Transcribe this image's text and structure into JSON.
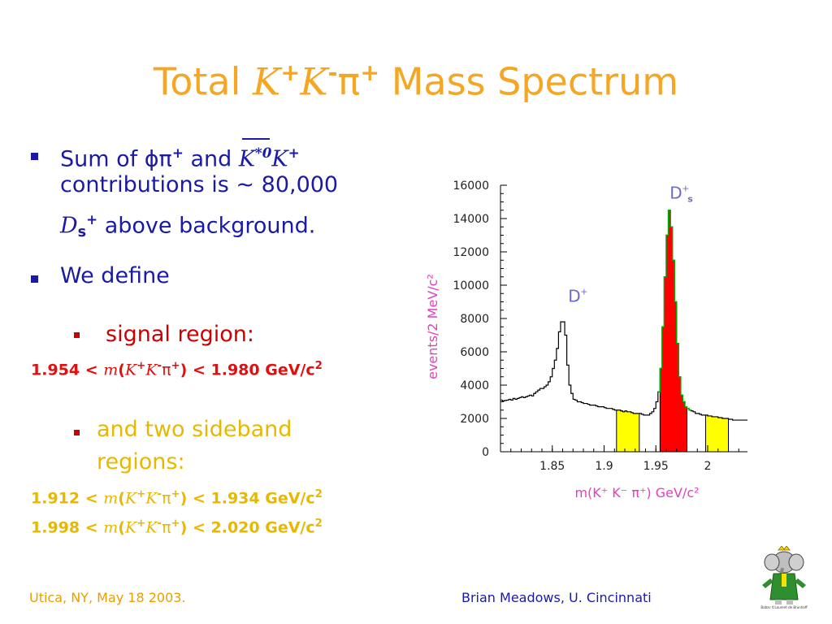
{
  "slide": {
    "title_prefix": "Total ",
    "title_k": "K",
    "title_plus": "+",
    "title_minus": "-",
    "title_pi": "π",
    "title_suffix": " Mass Spectrum",
    "bullet1": {
      "part1": "Sum of ",
      "phi_pi": "ϕπ",
      "plus": "+",
      "and": " and ",
      "kstar": "K",
      "kstar_sup": "*0",
      "k": "K",
      "line2": "contributions is ∼ 80,000",
      "ds": "D",
      "ds_sub": "s",
      "line3_rest": " above background."
    },
    "bullet2": "We define",
    "sub1": "signal region:",
    "eq1": {
      "low": "1.954 < ",
      "m": "m",
      "mid": "(",
      "k": "K",
      "pi": "π",
      "close": ") < 1.980 GeV/c",
      "sq": "2"
    },
    "sub2_line1": "and two sideband",
    "sub2_line2": "regions:",
    "eq2": {
      "low": "1.912 < ",
      "m": "m",
      "mid": "(",
      "k": "K",
      "pi": "π",
      "close": ") < 1.934 GeV/c",
      "sq": "2"
    },
    "eq3": {
      "low": "1.998 < ",
      "m": "m",
      "mid": "(",
      "k": "K",
      "pi": "π",
      "close": ") < 2.020 GeV/c",
      "sq": "2"
    },
    "plus": "+",
    "minus": "-"
  },
  "footer": {
    "left": "Utica, NY, May 18 2003.",
    "right": "Brian Meadows, U. Cincinnati",
    "logo_caption": "Babar ©Laurent de Brunhoff"
  },
  "chart_data": {
    "type": "histogram",
    "xlabel": "m(K⁺ K⁻ π⁺) GeV/c²",
    "ylabel": "events/2 MeV/c²",
    "xlim": [
      1.8,
      2.04
    ],
    "ylim": [
      0,
      16000
    ],
    "xticks": [
      "1.85",
      "1.9",
      "1.95",
      "2"
    ],
    "yticks": [
      "0",
      "2000",
      "4000",
      "6000",
      "8000",
      "10000",
      "12000",
      "14000",
      "16000"
    ],
    "annotations": [
      {
        "text": "D",
        "sup": "+",
        "x": 1.87,
        "y": 9000
      },
      {
        "text": "D",
        "sup": "+",
        "sub": "s",
        "x": 1.968,
        "y": 15200
      }
    ],
    "colors": {
      "signal": "#ff0000",
      "sideband": "#ffff00",
      "hist": "#000000",
      "signal_outline": "#00aa00",
      "labels": "#e040c0",
      "annotation": "#6a6ad0"
    },
    "bin_width": 0.002,
    "x": [
      1.8,
      1.802,
      1.804,
      1.806,
      1.808,
      1.81,
      1.812,
      1.814,
      1.816,
      1.818,
      1.82,
      1.822,
      1.824,
      1.826,
      1.828,
      1.83,
      1.832,
      1.834,
      1.836,
      1.838,
      1.84,
      1.842,
      1.844,
      1.846,
      1.848,
      1.85,
      1.852,
      1.854,
      1.856,
      1.858,
      1.86,
      1.862,
      1.864,
      1.866,
      1.868,
      1.87,
      1.872,
      1.874,
      1.876,
      1.878,
      1.88,
      1.882,
      1.884,
      1.886,
      1.888,
      1.89,
      1.892,
      1.894,
      1.896,
      1.898,
      1.9,
      1.902,
      1.904,
      1.906,
      1.908,
      1.91,
      1.912,
      1.914,
      1.916,
      1.918,
      1.92,
      1.922,
      1.924,
      1.926,
      1.928,
      1.93,
      1.932,
      1.934,
      1.936,
      1.938,
      1.94,
      1.942,
      1.944,
      1.946,
      1.948,
      1.95,
      1.952,
      1.954,
      1.956,
      1.958,
      1.96,
      1.962,
      1.964,
      1.966,
      1.968,
      1.97,
      1.972,
      1.974,
      1.976,
      1.978,
      1.98,
      1.982,
      1.984,
      1.986,
      1.988,
      1.99,
      1.992,
      1.994,
      1.996,
      1.998,
      2.0,
      2.002,
      2.004,
      2.006,
      2.008,
      2.01,
      2.012,
      2.014,
      2.016,
      2.018,
      2.02,
      2.022,
      2.024,
      2.026,
      2.028,
      2.03,
      2.032,
      2.034,
      2.036,
      2.038
    ],
    "values": [
      3100,
      3050,
      3080,
      3100,
      3150,
      3100,
      3200,
      3150,
      3200,
      3250,
      3300,
      3250,
      3300,
      3350,
      3400,
      3350,
      3500,
      3600,
      3700,
      3800,
      3800,
      3900,
      4000,
      4200,
      4500,
      5000,
      5500,
      6200,
      7200,
      7800,
      7800,
      7000,
      5200,
      4000,
      3500,
      3150,
      3100,
      3000,
      3000,
      2950,
      2900,
      2900,
      2850,
      2800,
      2800,
      2800,
      2750,
      2700,
      2700,
      2700,
      2650,
      2600,
      2600,
      2600,
      2550,
      2500,
      2500,
      2500,
      2450,
      2400,
      2450,
      2400,
      2400,
      2350,
      2300,
      2300,
      2300,
      2300,
      2250,
      2200,
      2200,
      2200,
      2300,
      2400,
      2600,
      3000,
      3600,
      5000,
      7500,
      10500,
      13000,
      14500,
      13500,
      11500,
      9000,
      6500,
      4500,
      3400,
      3000,
      2700,
      2600,
      2500,
      2450,
      2400,
      2300,
      2300,
      2250,
      2200,
      2200,
      2200,
      2150,
      2150,
      2100,
      2100,
      2100,
      2050,
      2050,
      2000,
      2000,
      2000,
      1950,
      1950,
      1900,
      1900,
      1900,
      1900,
      1900,
      1900,
      1900,
      1900
    ],
    "regions": [
      {
        "name": "sideband-low",
        "from": 1.912,
        "to": 1.934
      },
      {
        "name": "signal",
        "from": 1.954,
        "to": 1.98
      },
      {
        "name": "sideband-high",
        "from": 1.998,
        "to": 2.02
      }
    ]
  }
}
